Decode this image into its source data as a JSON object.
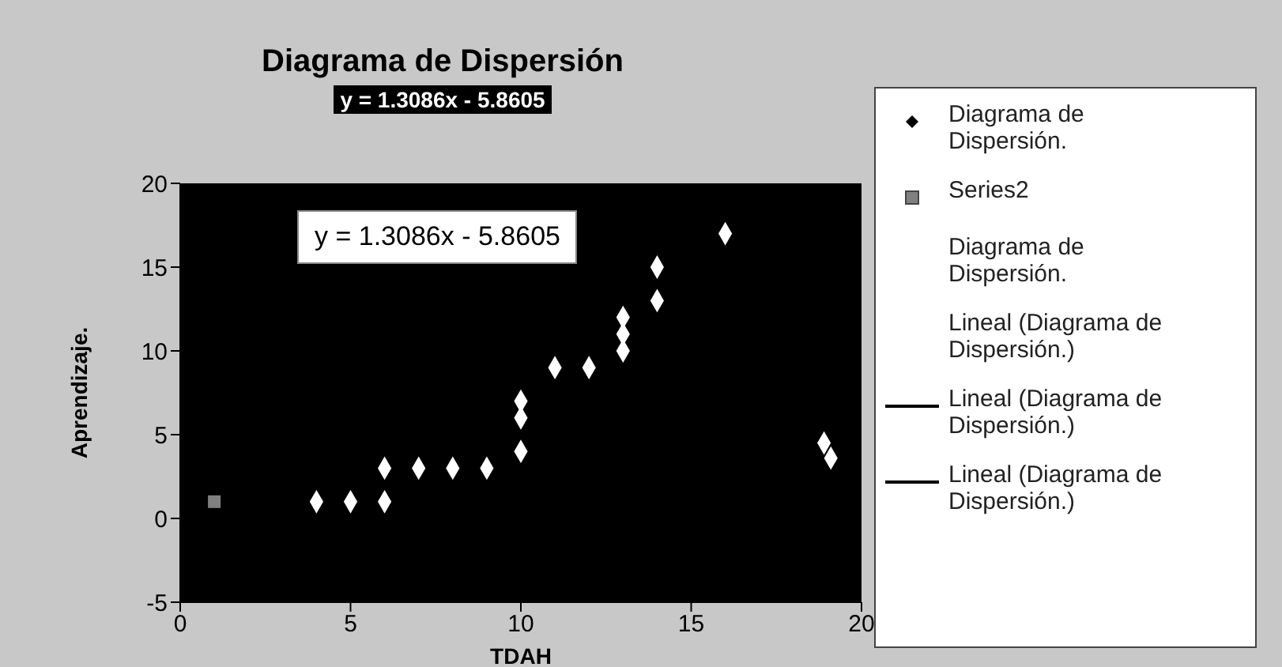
{
  "chart_data": {
    "type": "scatter",
    "title": "Diagrama de Dispersión",
    "subtitle": "y = 1.3086x - 5.8605",
    "xlabel": "TDAH",
    "ylabel": "Aprendizaje.",
    "annotations": [
      "y = 1.3086x - 5.8605"
    ],
    "xlim": [
      0,
      20
    ],
    "xticks": [
      0,
      5,
      10,
      15,
      20
    ],
    "ylim": [
      -5,
      20
    ],
    "yticks": [
      -5,
      0,
      5,
      10,
      15,
      20
    ],
    "legend": "right",
    "series": [
      {
        "name": "Diagrama de Dispersión.",
        "marker": "diamond",
        "color": "#ffffff",
        "x": [
          4,
          5,
          6,
          6,
          7,
          8,
          9,
          10,
          10,
          10,
          11,
          12,
          13,
          13,
          13,
          14,
          14,
          16,
          18.9,
          19.1
        ],
        "values": [
          1,
          1,
          1,
          3,
          3,
          3,
          3,
          4,
          6,
          7,
          9,
          9,
          10,
          11,
          12,
          13,
          15,
          17,
          4.5,
          3.6
        ]
      },
      {
        "name": "Series2",
        "marker": "square",
        "color": "#808080",
        "x": [
          1
        ],
        "values": [
          1
        ]
      },
      {
        "name": "Diagrama de Dispersión.",
        "type": "line"
      },
      {
        "name": "Lineal (Diagrama de Dispersión.)",
        "type": "line"
      },
      {
        "name": "Lineal (Diagrama de Dispersión.)",
        "type": "line",
        "color": "#000000"
      },
      {
        "name": "Lineal (Diagrama de Dispersión.)",
        "type": "line",
        "color": "#000000"
      }
    ]
  }
}
